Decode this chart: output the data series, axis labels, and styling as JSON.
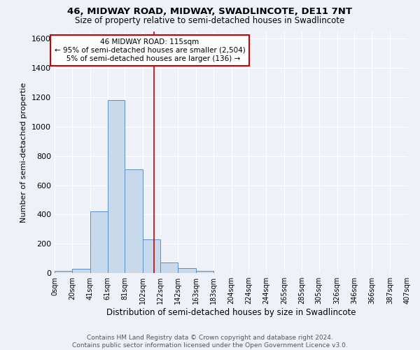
{
  "title": "46, MIDWAY ROAD, MIDWAY, SWADLINCOTE, DE11 7NT",
  "subtitle": "Size of property relative to semi-detached houses in Swadlincote",
  "xlabel": "Distribution of semi-detached houses by size in Swadlincote",
  "ylabel": "Number of semi-detached propertie",
  "bar_color": "#c8d9ec",
  "bar_edge_color": "#5b8fc9",
  "bin_edges": [
    0,
    20,
    41,
    61,
    81,
    102,
    122,
    142,
    163,
    183,
    204,
    224,
    244,
    265,
    285,
    305,
    326,
    346,
    366,
    387,
    407
  ],
  "bin_labels": [
    "0sqm",
    "20sqm",
    "41sqm",
    "61sqm",
    "81sqm",
    "102sqm",
    "122sqm",
    "142sqm",
    "163sqm",
    "183sqm",
    "204sqm",
    "224sqm",
    "244sqm",
    "265sqm",
    "285sqm",
    "305sqm",
    "326sqm",
    "346sqm",
    "366sqm",
    "387sqm",
    "407sqm"
  ],
  "counts": [
    13,
    28,
    420,
    1180,
    710,
    230,
    70,
    35,
    15,
    0,
    0,
    0,
    0,
    0,
    0,
    0,
    0,
    0,
    0,
    0
  ],
  "ylim": [
    0,
    1650
  ],
  "yticks": [
    0,
    200,
    400,
    600,
    800,
    1000,
    1200,
    1400,
    1600
  ],
  "property_size": 115,
  "property_label": "46 MIDWAY ROAD: 115sqm",
  "pct_smaller": 95,
  "count_smaller": 2504,
  "pct_larger": 5,
  "count_larger": 136,
  "vline_color": "#cc0000",
  "annotation_box_color": "#ffffff",
  "annotation_box_edge": "#cc0000",
  "footer_text": "Contains HM Land Registry data © Crown copyright and database right 2024.\nContains public sector information licensed under the Open Government Licence v3.0.",
  "background_color": "#eef2f8",
  "grid_color": "#ffffff"
}
